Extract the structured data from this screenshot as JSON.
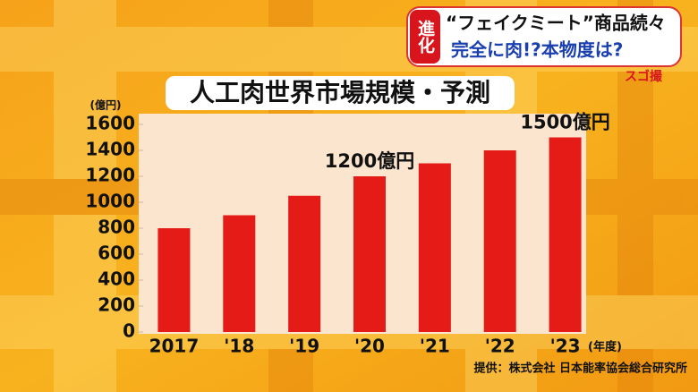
{
  "caption": {
    "badge": "進化",
    "line1": "“フェイクミート”商品続々",
    "line2": "完全に肉!?本物度は?"
  },
  "logo": "スゴ撮",
  "chart_data": {
    "type": "bar",
    "title": "人工肉世界市場規模・予測",
    "y_unit": "(億円)",
    "x_unit": "(年度)",
    "categories": [
      "2017",
      "'18",
      "'19",
      "'20",
      "'21",
      "'22",
      "'23"
    ],
    "values": [
      800,
      900,
      1050,
      1200,
      1300,
      1400,
      1500
    ],
    "value_labels": [
      null,
      null,
      null,
      "1200億円",
      null,
      null,
      "1500億円"
    ],
    "color": "#e41b17",
    "ylim": [
      0,
      1600
    ],
    "yticks": [
      0,
      200,
      400,
      600,
      800,
      1000,
      1200,
      1400,
      1600
    ],
    "grid": false,
    "source": "提供：株式会社 日本能率協会総合研究所"
  }
}
